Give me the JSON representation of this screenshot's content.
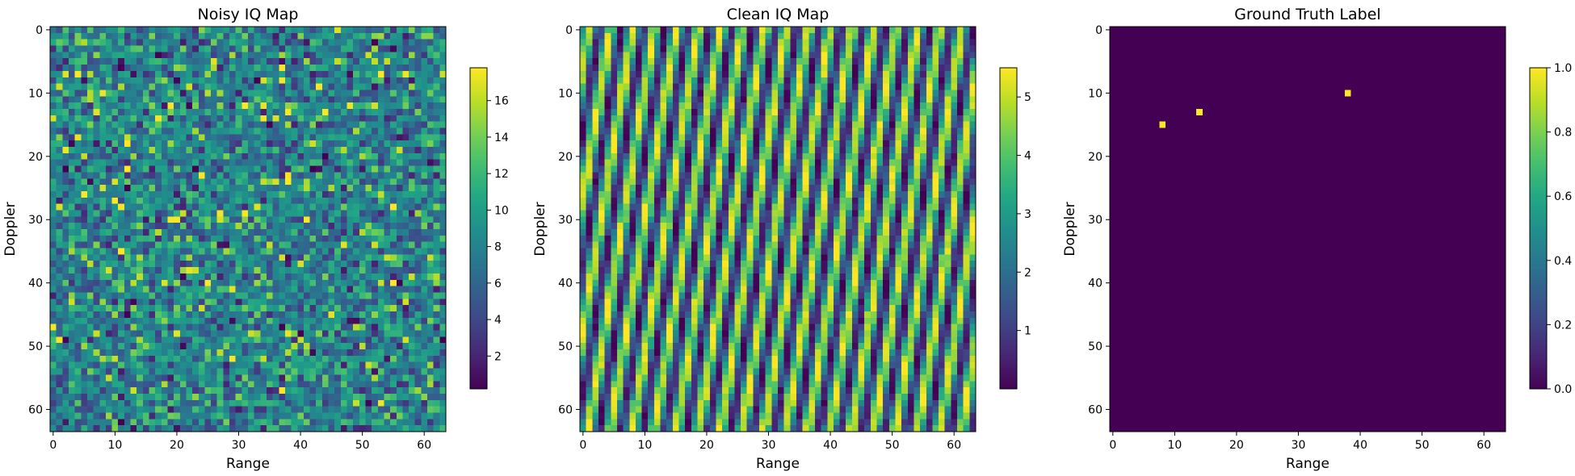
{
  "figure": {
    "colormap": "viridis",
    "background": "#ffffff"
  },
  "chart_data": [
    {
      "type": "heatmap",
      "title": "Noisy IQ Map",
      "xlabel": "Range",
      "ylabel": "Doppler",
      "grid_size": [
        64,
        64
      ],
      "xlim": [
        -0.5,
        63.5
      ],
      "ylim": [
        63.5,
        -0.5
      ],
      "x_ticks": [
        0,
        10,
        20,
        30,
        40,
        50,
        60
      ],
      "y_ticks": [
        0,
        10,
        20,
        30,
        40,
        50,
        60
      ],
      "value_range": [
        0.2,
        17.8
      ],
      "colorbar_ticks": [
        2,
        4,
        6,
        8,
        10,
        12,
        14,
        16
      ],
      "pattern": "random noise around mean 8 with scattered bright cells"
    },
    {
      "type": "heatmap",
      "title": "Clean IQ Map",
      "xlabel": "Range",
      "ylabel": "Doppler",
      "grid_size": [
        64,
        64
      ],
      "xlim": [
        -0.5,
        63.5
      ],
      "ylim": [
        63.5,
        -0.5
      ],
      "x_ticks": [
        0,
        10,
        20,
        30,
        40,
        50,
        60
      ],
      "y_ticks": [
        0,
        10,
        20,
        30,
        40,
        50,
        60
      ],
      "value_range": [
        0.0,
        5.5
      ],
      "colorbar_ticks": [
        1,
        2,
        3,
        4,
        5
      ],
      "pattern": "diagonal stripe interference"
    },
    {
      "type": "heatmap",
      "title": "Ground Truth Label",
      "xlabel": "Range",
      "ylabel": "Doppler",
      "grid_size": [
        64,
        64
      ],
      "xlim": [
        -0.5,
        63.5
      ],
      "ylim": [
        63.5,
        -0.5
      ],
      "x_ticks": [
        0,
        10,
        20,
        30,
        40,
        50,
        60
      ],
      "y_ticks": [
        0,
        10,
        20,
        30,
        40,
        50,
        60
      ],
      "value_range": [
        0.0,
        1.0
      ],
      "colorbar_ticks": [
        0.0,
        0.2,
        0.4,
        0.6,
        0.8,
        1.0
      ],
      "colorbar_tick_labels": [
        "0.0",
        "0.2",
        "0.4",
        "0.6",
        "0.8",
        "1.0"
      ],
      "targets": [
        {
          "range": 8,
          "doppler": 15,
          "value": 1
        },
        {
          "range": 14,
          "doppler": 13,
          "value": 1
        },
        {
          "range": 38,
          "doppler": 10,
          "value": 1
        }
      ]
    }
  ]
}
